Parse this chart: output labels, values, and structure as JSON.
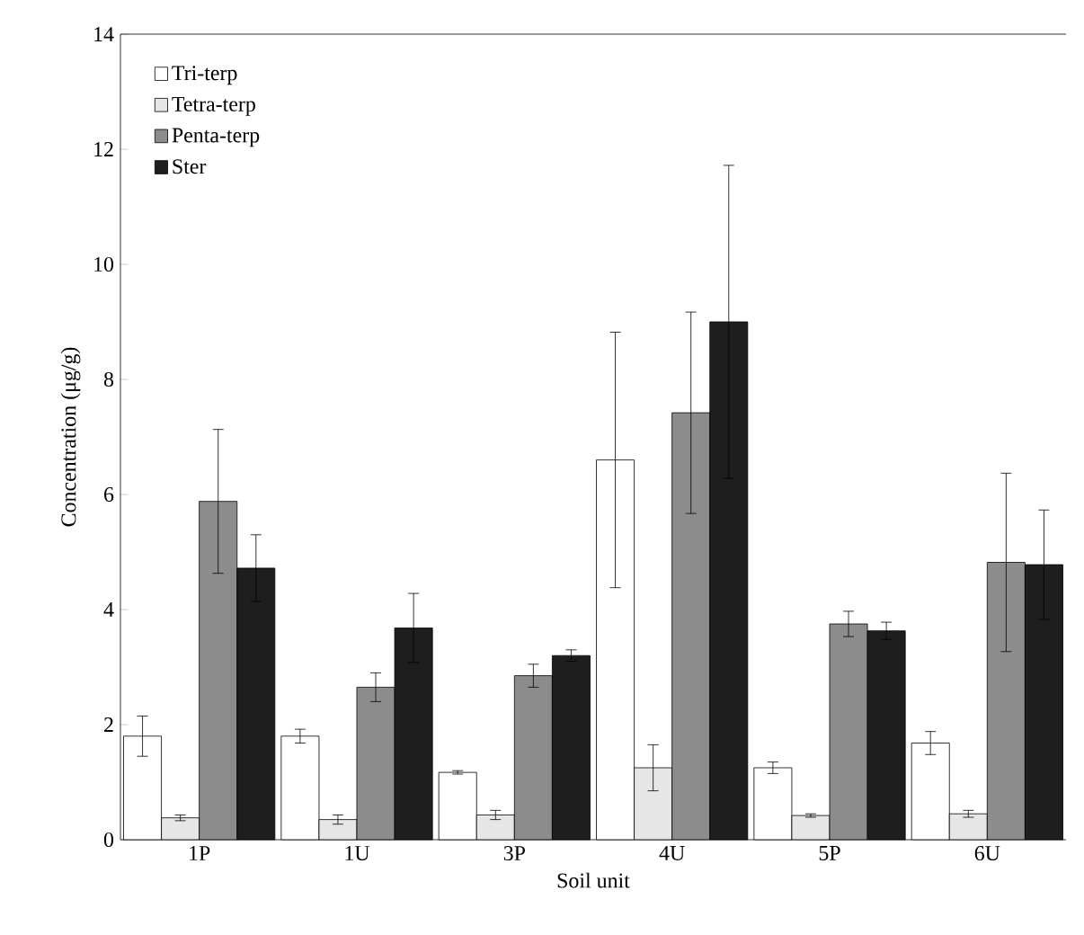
{
  "chart_data": {
    "type": "bar",
    "xlabel": "Soil unit",
    "ylabel": "Concentration (μg/g)",
    "categories": [
      "1P",
      "1U",
      "3P",
      "4U",
      "5P",
      "6U"
    ],
    "series": [
      {
        "name": "Tri-terp",
        "color": "#ffffff",
        "values": [
          1.8,
          1.8,
          1.17,
          6.6,
          1.25,
          1.68
        ],
        "errors": [
          0.35,
          0.12,
          0.03,
          2.22,
          0.1,
          0.2
        ]
      },
      {
        "name": "Tetra-terp",
        "color": "#e6e6e6",
        "values": [
          0.38,
          0.35,
          0.43,
          1.25,
          0.42,
          0.45
        ],
        "errors": [
          0.05,
          0.08,
          0.08,
          0.4,
          0.03,
          0.06
        ]
      },
      {
        "name": "Penta-terp",
        "color": "#8c8c8c",
        "values": [
          5.88,
          2.65,
          2.85,
          7.42,
          3.75,
          4.82
        ],
        "errors": [
          1.25,
          0.25,
          0.2,
          1.75,
          0.22,
          1.55
        ]
      },
      {
        "name": "Ster",
        "color": "#1e1e1e",
        "values": [
          4.72,
          3.68,
          3.2,
          9.0,
          3.63,
          4.78
        ],
        "errors": [
          0.58,
          0.6,
          0.1,
          2.72,
          0.15,
          0.95
        ]
      }
    ],
    "ylim": [
      0,
      14
    ],
    "yticks": [
      0,
      2,
      4,
      6,
      8,
      10,
      12,
      14
    ],
    "legend": "top left",
    "grid": false
  }
}
